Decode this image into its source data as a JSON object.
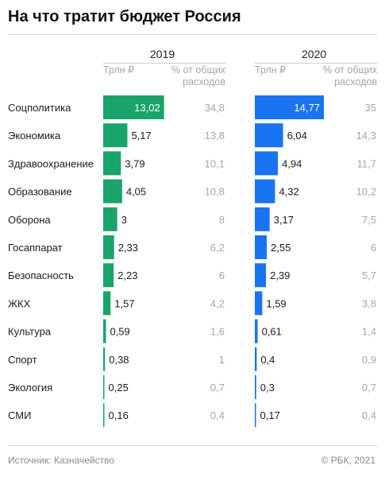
{
  "title": "На что тратит бюджет Россия",
  "source": "Источник: Казначейство",
  "credit": "© РБК, 2021",
  "colors": {
    "y2019": "#1aa36b",
    "y2020": "#1874f0"
  },
  "chart_data": {
    "type": "bar",
    "orientation": "horizontal",
    "title": "На что тратит бюджет Россия",
    "unit_label": "Трлн ₽",
    "share_label": "% от общих расходов",
    "share_label_lines": [
      "% от общих",
      "расходов"
    ],
    "categories": [
      "Соцполитика",
      "Экономика",
      "Здравоохранение",
      "Образование",
      "Оборона",
      "Госаппарат",
      "Безопасность",
      "ЖКХ",
      "Культура",
      "Спорт",
      "Экология",
      "СМИ"
    ],
    "series": [
      {
        "name": "2019",
        "values": [
          13.02,
          5.17,
          3.79,
          4.05,
          3,
          2.33,
          2.23,
          1.57,
          0.59,
          0.38,
          0.25,
          0.16
        ],
        "labels": [
          "13,02",
          "5,17",
          "3,79",
          "4,05",
          "3",
          "2,33",
          "2,23",
          "1,57",
          "0,59",
          "0,38",
          "0,25",
          "0,16"
        ],
        "share": [
          "34,8",
          "13,8",
          "10,1",
          "10,8",
          "8",
          "6,2",
          "6",
          "4,2",
          "1,6",
          "1",
          "0,7",
          "0,4"
        ]
      },
      {
        "name": "2020",
        "values": [
          14.77,
          6.04,
          4.94,
          4.32,
          3.17,
          2.55,
          2.39,
          1.59,
          0.61,
          0.4,
          0.3,
          0.17
        ],
        "labels": [
          "14,77",
          "6,04",
          "4,94",
          "4,32",
          "3,17",
          "2,55",
          "2,39",
          "1,59",
          "0,61",
          "0,4",
          "0,3",
          "0,17"
        ],
        "share": [
          "35",
          "14,3",
          "11,7",
          "10,2",
          "7,5",
          "6",
          "5,7",
          "3,8",
          "1,4",
          "0,9",
          "0,7",
          "0,4"
        ]
      }
    ],
    "xlim": [
      0,
      20.3
    ],
    "grid": false,
    "legend": "none"
  }
}
